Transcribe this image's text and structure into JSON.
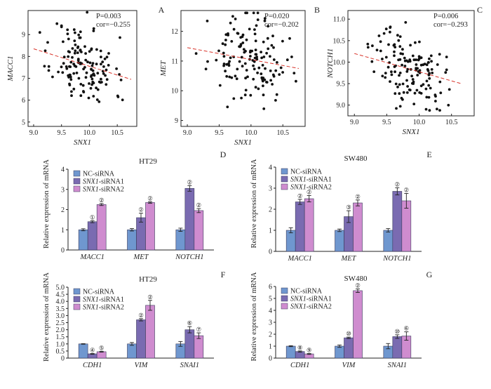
{
  "figure": {
    "panel_letters": [
      "A",
      "B",
      "C",
      "D",
      "E",
      "F",
      "G"
    ],
    "scatter_titles": [],
    "bar_titles": [
      "HT29",
      "SW480",
      "HT29",
      "SW480"
    ]
  },
  "colors": {
    "nc": "#6f97cf",
    "si1": "#7a6bb1",
    "si2": "#cf8ccf",
    "fit": "#d9342b",
    "dot": "#111111"
  },
  "chart_data": [
    {
      "panel": "A",
      "type": "scatter",
      "xlabel": "SNX1",
      "ylabel": "MACC1",
      "annotation": {
        "p": "P=0.003",
        "cor": "cor=−0.255"
      },
      "xlim": [
        8.9,
        10.85
      ],
      "ylim": [
        4.8,
        10.1
      ],
      "xticks": [
        "9.0",
        "9.5",
        "10.0",
        "10.5"
      ],
      "yticks": [
        "5",
        "6",
        "7",
        "8",
        "9"
      ],
      "fit": {
        "x": [
          9.0,
          10.75
        ],
        "y": [
          8.35,
          6.95
        ]
      },
      "n_points": 140,
      "x_mean": 9.9,
      "x_sd": 0.28,
      "y_mean": 7.6,
      "y_sd": 0.95,
      "corr": -0.255,
      "seed": 11
    },
    {
      "panel": "B",
      "type": "scatter",
      "xlabel": "SNX1",
      "ylabel": "MET",
      "annotation": {
        "p": "P=0.020",
        "cor": "cor=−0.202"
      },
      "xlim": [
        8.9,
        10.85
      ],
      "ylim": [
        8.8,
        12.7
      ],
      "xticks": [
        "9.0",
        "9.5",
        "10.0",
        "10.5"
      ],
      "yticks": [
        "9",
        "10",
        "11",
        "12"
      ],
      "fit": {
        "x": [
          9.0,
          10.75
        ],
        "y": [
          11.45,
          10.75
        ]
      },
      "n_points": 140,
      "x_mean": 9.95,
      "x_sd": 0.3,
      "y_mean": 11.05,
      "y_sd": 0.7,
      "corr": -0.202,
      "seed": 23
    },
    {
      "panel": "C",
      "type": "scatter",
      "xlabel": "SNX1",
      "ylabel": "NOTCH1",
      "annotation": {
        "p": "P=0.006",
        "cor": "cor=−0.293"
      },
      "xlim": [
        8.9,
        10.85
      ],
      "ylim": [
        8.75,
        11.2
      ],
      "xticks": [
        "9.0",
        "9.5",
        "10.0",
        "10.5"
      ],
      "yticks": [
        "9.0",
        "9.5",
        "10.0",
        "10.5",
        "11.0"
      ],
      "fit": {
        "x": [
          9.0,
          10.65
        ],
        "y": [
          10.2,
          9.5
        ]
      },
      "n_points": 140,
      "x_mean": 9.85,
      "x_sd": 0.27,
      "y_mean": 9.85,
      "y_sd": 0.45,
      "corr": -0.293,
      "seed": 37
    },
    {
      "panel": "D",
      "type": "bar",
      "title": "HT29",
      "ylabel": "Relative expression of mRNA",
      "ylim": [
        0,
        4
      ],
      "yticks": [
        "0",
        "1",
        "2",
        "3",
        "4"
      ],
      "categories": [
        "MACC1",
        "MET",
        "NOTCH1"
      ],
      "legend": [
        {
          "text_italic": "",
          "text": "NC-siRNA"
        },
        {
          "text_italic": "SNX1",
          "text": "-siRNA1"
        },
        {
          "text_italic": "SNX1",
          "text": "-siRNA2"
        }
      ],
      "series": [
        {
          "values": [
            1.0,
            1.0,
            1.0
          ],
          "errors": [
            0.05,
            0.06,
            0.08
          ]
        },
        {
          "values": [
            1.4,
            1.6,
            3.05
          ],
          "errors": [
            0.05,
            0.22,
            0.14
          ]
        },
        {
          "values": [
            2.25,
            2.35,
            1.95
          ],
          "errors": [
            0.05,
            0.04,
            0.1
          ]
        }
      ],
      "marks": [
        [
          "",
          "",
          ""
        ],
        [
          "①",
          "②",
          "②"
        ],
        [
          "②",
          "②",
          "②"
        ]
      ]
    },
    {
      "panel": "E",
      "type": "bar",
      "title": "SW480",
      "ylabel": "Relative expression of mRNA",
      "ylim": [
        0,
        4
      ],
      "yticks": [
        "0",
        "1",
        "2",
        "3",
        "4"
      ],
      "categories": [
        "MACC1",
        "MET",
        "NOTCH1"
      ],
      "legend": [
        {
          "text_italic": "",
          "text": "NC-siRNA"
        },
        {
          "text_italic": "SNX1",
          "text": "-siRNA1"
        },
        {
          "text_italic": "SNX1",
          "text": "-siRNA2"
        }
      ],
      "series": [
        {
          "values": [
            1.0,
            1.0,
            1.0
          ],
          "errors": [
            0.12,
            0.06,
            0.08
          ]
        },
        {
          "values": [
            2.35,
            1.65,
            2.85
          ],
          "errors": [
            0.12,
            0.28,
            0.17
          ]
        },
        {
          "values": [
            2.5,
            2.3,
            2.4
          ],
          "errors": [
            0.15,
            0.14,
            0.35
          ]
        }
      ],
      "marks": [
        [
          "",
          "",
          ""
        ],
        [
          "②",
          "③",
          "②"
        ],
        [
          "②",
          "②",
          "②"
        ]
      ]
    },
    {
      "panel": "F",
      "type": "bar",
      "title": "HT29",
      "ylabel": "Relative expression of mRNA",
      "ylim": [
        0,
        5
      ],
      "yticks": [
        "0",
        "0.5",
        "1.0",
        "1.5",
        "2.0",
        "2.5",
        "3.0",
        "3.5",
        "4.0",
        "4.5",
        "5.0"
      ],
      "categories": [
        "CDH1",
        "VIM",
        "SNAI1"
      ],
      "legend": [
        {
          "text_italic": "",
          "text": "NC-siRNA"
        },
        {
          "text_italic": "SNX1",
          "text": "-siRNA1"
        },
        {
          "text_italic": "SNX1",
          "text": "-siRNA2"
        }
      ],
      "series": [
        {
          "values": [
            1.0,
            1.0,
            1.0
          ],
          "errors": [
            0.02,
            0.1,
            0.17
          ]
        },
        {
          "values": [
            0.3,
            2.7,
            2.0
          ],
          "errors": [
            0.03,
            0.08,
            0.22
          ]
        },
        {
          "values": [
            0.45,
            3.72,
            1.58
          ],
          "errors": [
            0.03,
            0.35,
            0.2
          ]
        }
      ],
      "marks": [
        [
          "",
          "",
          ""
        ],
        [
          "④",
          "②",
          "⑥"
        ],
        [
          "⑤",
          "②",
          "⑦"
        ]
      ]
    },
    {
      "panel": "G",
      "type": "bar",
      "title": "SW480",
      "ylabel": "Relative expression of mRNA",
      "ylim": [
        0,
        6
      ],
      "yticks": [
        "0",
        "1",
        "2",
        "3",
        "4",
        "5",
        "6"
      ],
      "categories": [
        "CDH1",
        "VIM",
        "SNAI1"
      ],
      "legend": [
        {
          "text_italic": "",
          "text": "NC-siRNA"
        },
        {
          "text_italic": "SNX1",
          "text": "-siRNA1"
        },
        {
          "text_italic": "SNX1",
          "text": "-siRNA2"
        }
      ],
      "series": [
        {
          "values": [
            1.0,
            1.0,
            1.0
          ],
          "errors": [
            0.04,
            0.1,
            0.22
          ]
        },
        {
          "values": [
            0.55,
            1.7,
            1.8
          ],
          "errors": [
            0.05,
            0.06,
            0.15
          ]
        },
        {
          "values": [
            0.35,
            5.65,
            1.85
          ],
          "errors": [
            0.04,
            0.15,
            0.35
          ]
        }
      ],
      "marks": [
        [
          "",
          "",
          ""
        ],
        [
          "⑧",
          "⑩",
          "⑩"
        ],
        [
          "⑨",
          "②",
          "⑥"
        ]
      ]
    }
  ]
}
